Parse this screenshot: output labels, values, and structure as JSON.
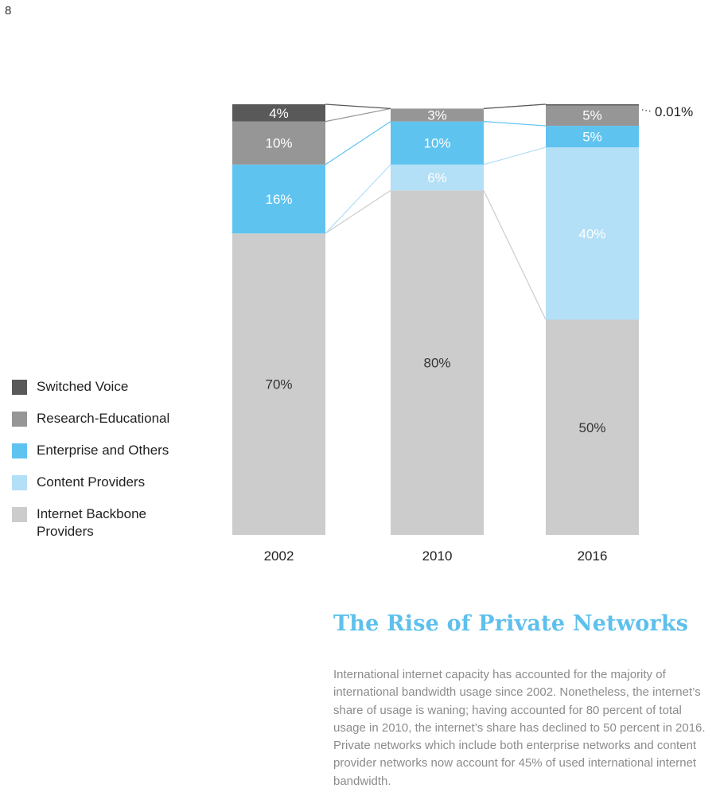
{
  "page_number": "8",
  "legend": [
    {
      "label": "Switched Voice",
      "color": "#595959"
    },
    {
      "label": "Research-Educational",
      "color": "#969696"
    },
    {
      "label": "Enterprise and Others",
      "color": "#5fc3f0"
    },
    {
      "label": "Content Providers",
      "color": "#b3dff7"
    },
    {
      "label": "Internet Backbone\nProviders",
      "color": "#cccccc"
    }
  ],
  "chart_data": {
    "type": "bar",
    "stacked": true,
    "percent_stacked": true,
    "categories": [
      "2002",
      "2010",
      "2016"
    ],
    "series": [
      {
        "name": "Internet Backbone Providers",
        "color": "#cccccc",
        "label_color": "#333333",
        "values": [
          70,
          80,
          50
        ],
        "labels": [
          "70%",
          "80%",
          "50%"
        ]
      },
      {
        "name": "Content Providers",
        "color": "#b3dff7",
        "label_color": "#ffffff",
        "values": [
          0,
          6,
          40
        ],
        "labels": [
          "",
          "6%",
          "40%"
        ]
      },
      {
        "name": "Enterprise and Others",
        "color": "#5fc3f0",
        "label_color": "#ffffff",
        "values": [
          16,
          10,
          5
        ],
        "labels": [
          "16%",
          "10%",
          "5%"
        ]
      },
      {
        "name": "Research-Educational",
        "color": "#969696",
        "label_color": "#ffffff",
        "values": [
          10,
          3,
          5
        ],
        "labels": [
          "10%",
          "3%",
          "5%"
        ]
      },
      {
        "name": "Switched Voice",
        "color": "#595959",
        "label_color": "#ffffff",
        "values": [
          4,
          0,
          0.01
        ],
        "labels": [
          "4%",
          "",
          "0.01%"
        ]
      }
    ],
    "ylim": [
      0,
      100
    ],
    "grid": false,
    "legend_position": "left"
  },
  "article": {
    "title": "The Rise of Private Networks",
    "body": "International internet capacity has accounted for the majority of international bandwidth usage since 2002. Nonetheless, the internet’s share of usage is waning; having accounted for 80 percent of total usage in 2010, the internet’s share has declined to 50 percent in 2016. Private networks which include both enterprise networks and content provider networks now account for 45% of used international internet bandwidth."
  }
}
